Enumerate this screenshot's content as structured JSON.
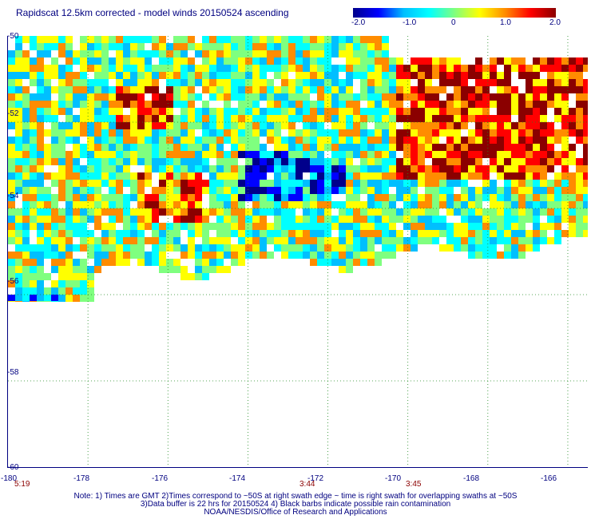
{
  "title": "Rapidscat 12.5km corrected - model winds 20150524 ascending",
  "colorbar": {
    "ticks": [
      "-2.0",
      "-1.0",
      "0",
      "1.0",
      "2.0"
    ],
    "colors": [
      "#00008b",
      "#0000ff",
      "#00bfff",
      "#00ffff",
      "#7fff7f",
      "#ffff00",
      "#ff8c00",
      "#ff0000",
      "#8b0000"
    ]
  },
  "y_axis": {
    "ticks": [
      "-50",
      "-52",
      "-54",
      "-56",
      "-58",
      "-60"
    ],
    "range": [
      -60,
      -50
    ]
  },
  "x_axis": {
    "ticks": [
      "-180",
      "-178",
      "-176",
      "-174",
      "-172",
      "-170",
      "-168",
      "-166"
    ],
    "range": [
      -180,
      -165.5
    ]
  },
  "swath_times": [
    "5:19",
    "3:44",
    "3:45"
  ],
  "notes": [
    "Note: 1) Times are GMT 2)Times correspond to ~50S at right swath edge ~ time is right swath for overlapping swaths at ~50S",
    "3)Data buffer is 22 hrs for 20150524 4) Black barbs indicate possible rain contamination",
    "NOAA/NESDIS/Office of Research and Applications"
  ]
}
